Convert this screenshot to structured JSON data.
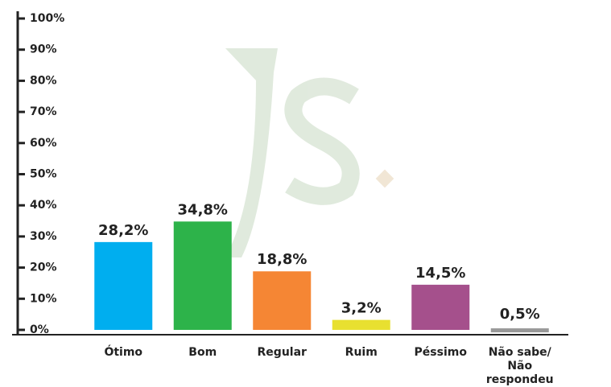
{
  "chart_data": {
    "type": "bar",
    "categories": [
      "Ótimo",
      "Bom",
      "Regular",
      "Ruim",
      "Péssimo",
      "Não sabe/ Não respondeu"
    ],
    "values": [
      28.2,
      34.8,
      18.8,
      3.2,
      14.5,
      0.5
    ],
    "value_labels": [
      "28,2%",
      "34,8%",
      "18,8%",
      "3,2%",
      "14,5%",
      "0,5%"
    ],
    "colors": [
      "#00aeef",
      "#2db34a",
      "#f58634",
      "#e8e030",
      "#a5508c",
      "#999999"
    ],
    "ylim": [
      0,
      100
    ],
    "yticks": [
      {
        "value": 0,
        "label": "0%"
      },
      {
        "value": 10,
        "label": "10%"
      },
      {
        "value": 20,
        "label": "20%"
      },
      {
        "value": 30,
        "label": "30%"
      },
      {
        "value": 40,
        "label": "40%"
      },
      {
        "value": 50,
        "label": "50%"
      },
      {
        "value": 60,
        "label": "60%"
      },
      {
        "value": 70,
        "label": "70%"
      },
      {
        "value": 80,
        "label": "80%"
      },
      {
        "value": 90,
        "label": "90%"
      },
      {
        "value": 100,
        "label": "100%"
      }
    ],
    "grid": false
  }
}
